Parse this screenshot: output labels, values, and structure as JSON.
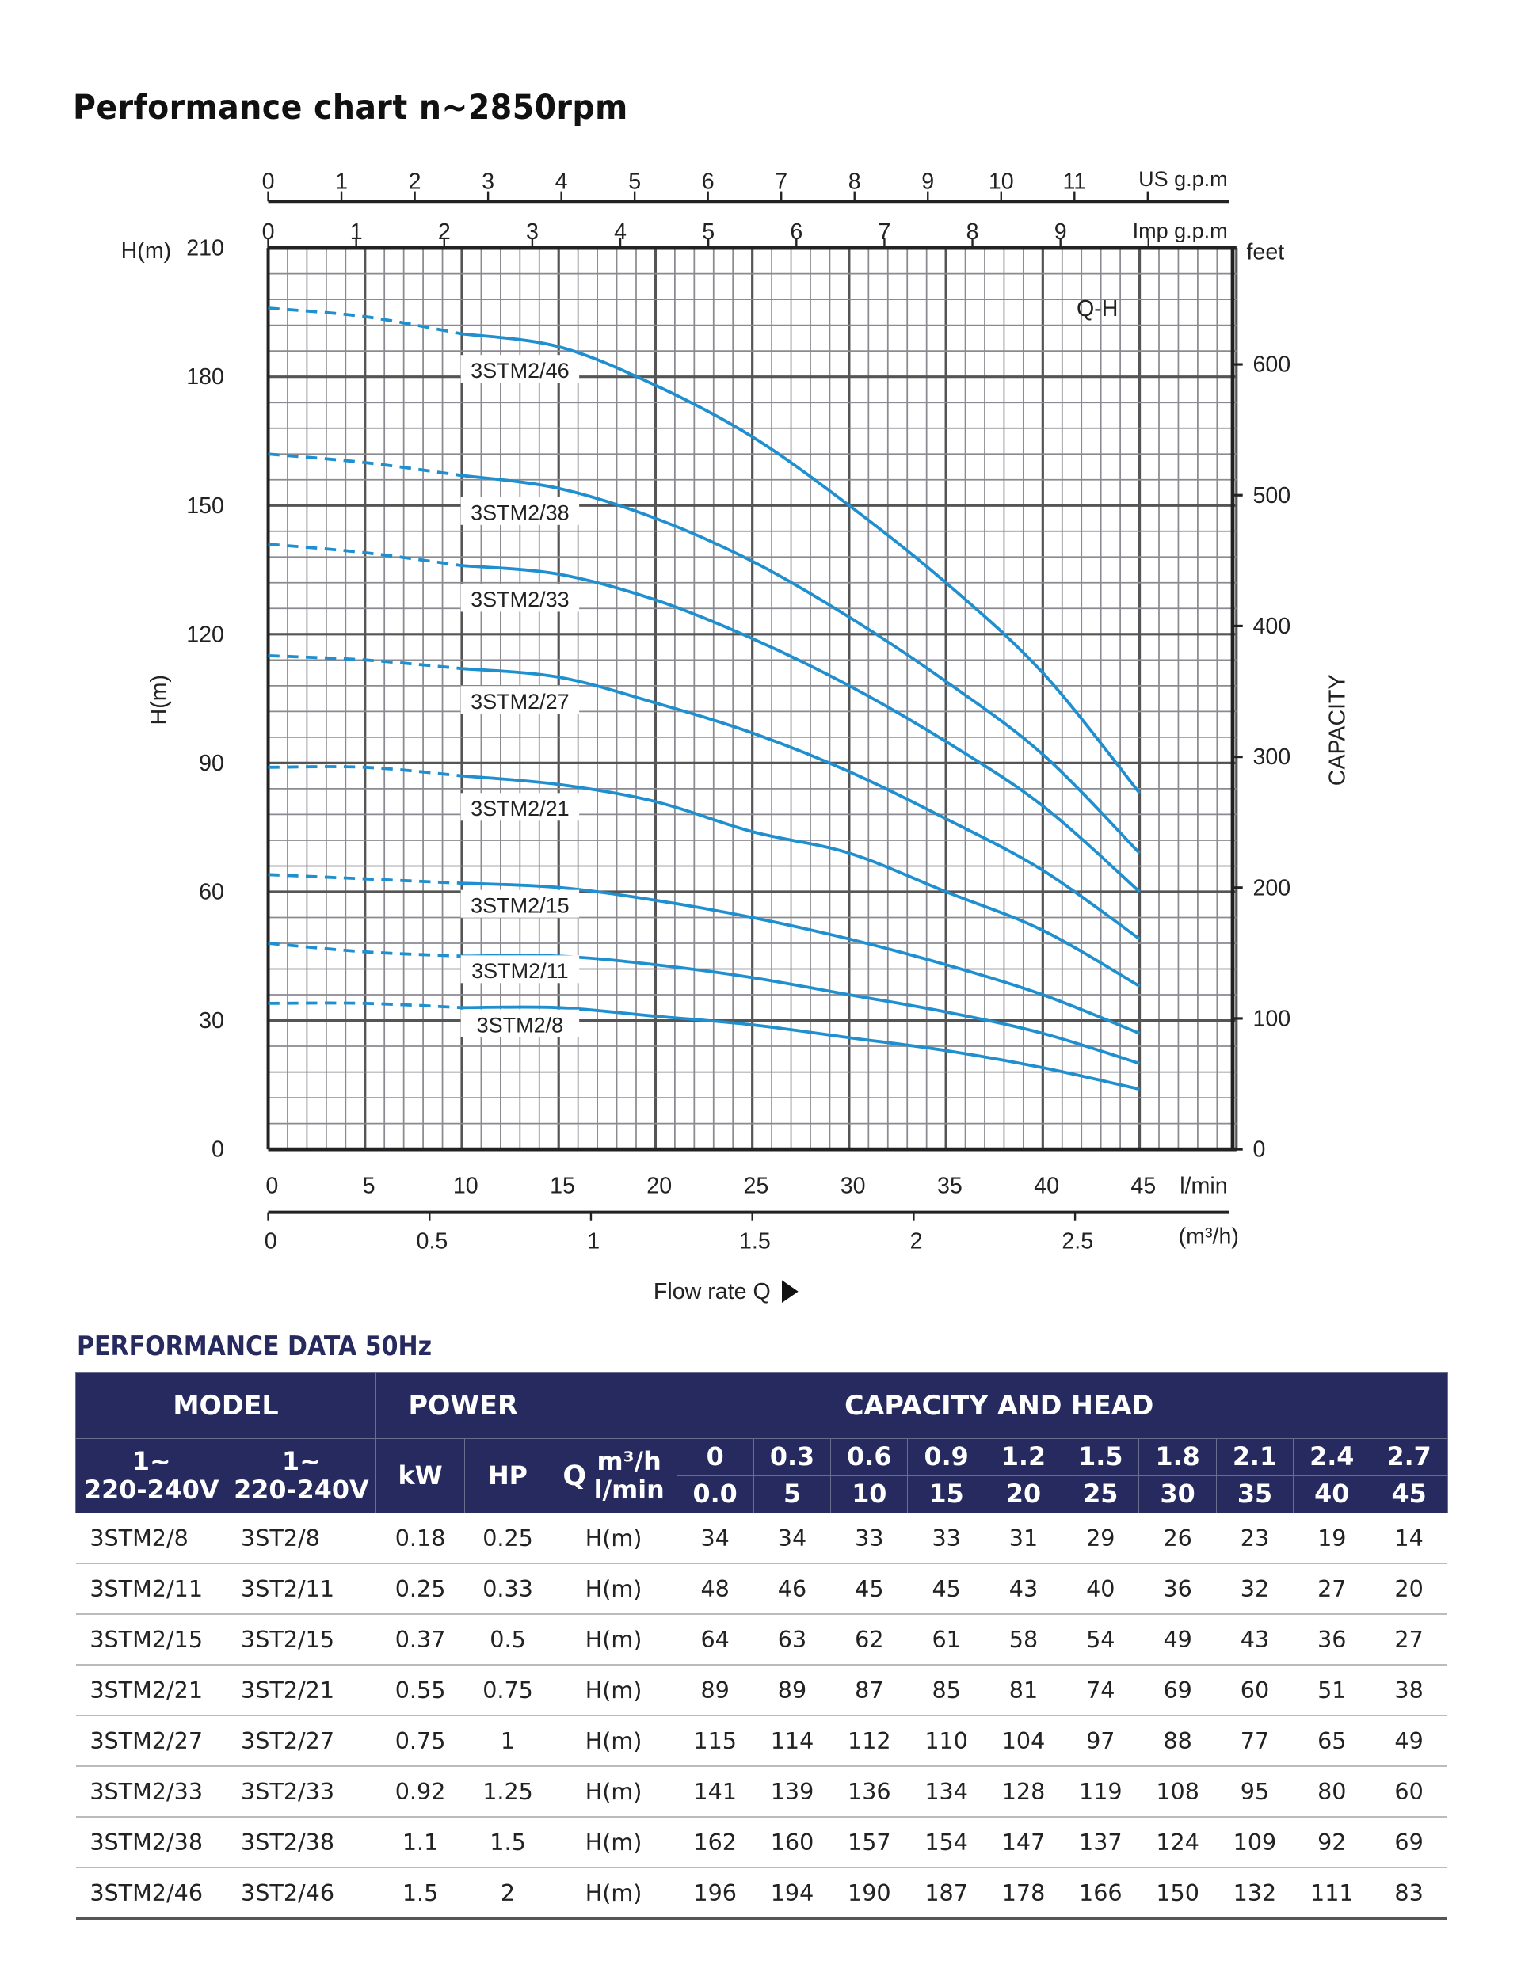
{
  "title": "Performance chart n~2850rpm",
  "chart_data": {
    "type": "line",
    "title": "Q-H",
    "xlabel": "Flow rate Q",
    "x_unit_lmin": "l/min",
    "x_unit_m3h": "(m³/h)",
    "ylabel": "H(m)",
    "ylabel_top": "H(m)",
    "y2label": "CAPACITY",
    "y2unit": "feet",
    "xlim": [
      0,
      50
    ],
    "ylim": [
      0,
      210
    ],
    "grid": true,
    "x_ticks_lmin": [
      "0",
      "5",
      "10",
      "15",
      "20",
      "25",
      "30",
      "35",
      "40",
      "45"
    ],
    "x_ticks_m3h": [
      "0",
      "0.5",
      "1",
      "1.5",
      "2",
      "2.5"
    ],
    "y_ticks": [
      "0",
      "30",
      "60",
      "90",
      "120",
      "150",
      "180",
      "210"
    ],
    "y2_ticks": [
      "0",
      "100",
      "200",
      "300",
      "400",
      "500",
      "600"
    ],
    "top_axis_us": {
      "label": "US g.p.m",
      "ticks": [
        "0",
        "1",
        "2",
        "3",
        "4",
        "5",
        "6",
        "7",
        "8",
        "9",
        "10",
        "11"
      ]
    },
    "top_axis_imp": {
      "label": "Imp g.p.m",
      "ticks": [
        "0",
        "1",
        "2",
        "3",
        "4",
        "5",
        "6",
        "7",
        "8",
        "9"
      ]
    },
    "x": [
      0,
      5,
      10,
      15,
      20,
      25,
      30,
      35,
      40,
      45
    ],
    "series": [
      {
        "name": "3STM2/46",
        "values": [
          196,
          194,
          190,
          187,
          178,
          166,
          150,
          132,
          111,
          83
        ]
      },
      {
        "name": "3STM2/38",
        "values": [
          162,
          160,
          157,
          154,
          147,
          137,
          124,
          109,
          92,
          69
        ]
      },
      {
        "name": "3STM2/33",
        "values": [
          141,
          139,
          136,
          134,
          128,
          119,
          108,
          95,
          80,
          60
        ]
      },
      {
        "name": "3STM2/27",
        "values": [
          115,
          114,
          112,
          110,
          104,
          97,
          88,
          77,
          65,
          49
        ]
      },
      {
        "name": "3STM2/21",
        "values": [
          89,
          89,
          87,
          85,
          81,
          74,
          69,
          60,
          51,
          38
        ]
      },
      {
        "name": "3STM2/15",
        "values": [
          64,
          63,
          62,
          61,
          58,
          54,
          49,
          43,
          36,
          27
        ]
      },
      {
        "name": "3STM2/11",
        "values": [
          48,
          46,
          45,
          45,
          43,
          40,
          36,
          32,
          27,
          20
        ]
      },
      {
        "name": "3STM2/8",
        "values": [
          34,
          34,
          33,
          33,
          31,
          29,
          26,
          23,
          19,
          14
        ]
      }
    ],
    "curve_color": "#1f8fcf"
  },
  "table": {
    "title": "PERFORMANCE DATA  50Hz",
    "header": {
      "model": "MODEL",
      "power": "POWER",
      "capacity": "CAPACITY AND HEAD",
      "phase1": "1~",
      "volt1": "220-240V",
      "phase2": "1~",
      "volt2": "220-240V",
      "kw": "kW",
      "hp": "HP",
      "q": "Q",
      "m3h": "m³/h",
      "lmin": "l/min",
      "m3h_values": [
        "0",
        "0.3",
        "0.6",
        "0.9",
        "1.2",
        "1.5",
        "1.8",
        "2.1",
        "2.4",
        "2.7"
      ],
      "lmin_values": [
        "0.0",
        "5",
        "10",
        "15",
        "20",
        "25",
        "30",
        "35",
        "40",
        "45"
      ]
    },
    "rows": [
      {
        "m1": "3STM2/8",
        "m2": "3ST2/8",
        "kw": "0.18",
        "hp": "0.25",
        "unit": "H(m)",
        "h": [
          "34",
          "34",
          "33",
          "33",
          "31",
          "29",
          "26",
          "23",
          "19",
          "14"
        ]
      },
      {
        "m1": "3STM2/11",
        "m2": "3ST2/11",
        "kw": "0.25",
        "hp": "0.33",
        "unit": "H(m)",
        "h": [
          "48",
          "46",
          "45",
          "45",
          "43",
          "40",
          "36",
          "32",
          "27",
          "20"
        ]
      },
      {
        "m1": "3STM2/15",
        "m2": "3ST2/15",
        "kw": "0.37",
        "hp": "0.5",
        "unit": "H(m)",
        "h": [
          "64",
          "63",
          "62",
          "61",
          "58",
          "54",
          "49",
          "43",
          "36",
          "27"
        ]
      },
      {
        "m1": "3STM2/21",
        "m2": "3ST2/21",
        "kw": "0.55",
        "hp": "0.75",
        "unit": "H(m)",
        "h": [
          "89",
          "89",
          "87",
          "85",
          "81",
          "74",
          "69",
          "60",
          "51",
          "38"
        ]
      },
      {
        "m1": "3STM2/27",
        "m2": "3ST2/27",
        "kw": "0.75",
        "hp": "1",
        "unit": "H(m)",
        "h": [
          "115",
          "114",
          "112",
          "110",
          "104",
          "97",
          "88",
          "77",
          "65",
          "49"
        ]
      },
      {
        "m1": "3STM2/33",
        "m2": "3ST2/33",
        "kw": "0.92",
        "hp": "1.25",
        "unit": "H(m)",
        "h": [
          "141",
          "139",
          "136",
          "134",
          "128",
          "119",
          "108",
          "95",
          "80",
          "60"
        ]
      },
      {
        "m1": "3STM2/38",
        "m2": "3ST2/38",
        "kw": "1.1",
        "hp": "1.5",
        "unit": "H(m)",
        "h": [
          "162",
          "160",
          "157",
          "154",
          "147",
          "137",
          "124",
          "109",
          "92",
          "69"
        ]
      },
      {
        "m1": "3STM2/46",
        "m2": "3ST2/46",
        "kw": "1.5",
        "hp": "2",
        "unit": "H(m)",
        "h": [
          "196",
          "194",
          "190",
          "187",
          "178",
          "166",
          "150",
          "132",
          "111",
          "83"
        ]
      }
    ]
  }
}
